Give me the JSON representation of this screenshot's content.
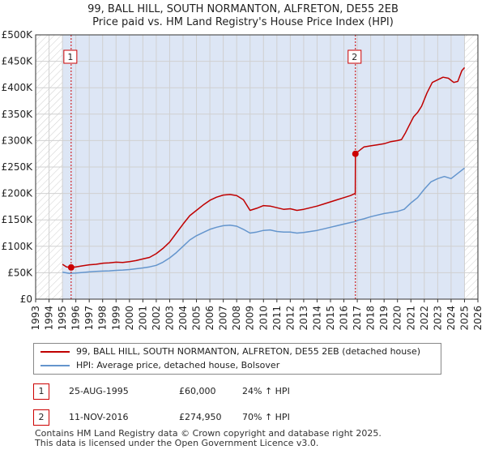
{
  "title": {
    "line1": "99, BALL HILL, SOUTH NORMANTON, ALFRETON, DE55 2EB",
    "line2": "Price paid vs. HM Land Registry's House Price Index (HPI)"
  },
  "legend": {
    "property_label": "99, BALL HILL, SOUTH NORMANTON, ALFRETON, DE55 2EB (detached house)",
    "hpi_label": "HPI: Average price, detached house, Bolsover"
  },
  "sales": [
    {
      "num": "1",
      "date": "25-AUG-1995",
      "price": "£60,000",
      "hpi": "24% ↑ HPI"
    },
    {
      "num": "2",
      "date": "11-NOV-2016",
      "price": "£274,950",
      "hpi": "70% ↑ HPI"
    }
  ],
  "footer": {
    "line1": "Contains HM Land Registry data © Crown copyright and database right 2025.",
    "line2": "This data is licensed under the Open Government Licence v3.0."
  },
  "colors": {
    "property": "#c00000",
    "hpi": "#6495cd",
    "sale_marker": "#cc0000",
    "shade": "#dde6f5",
    "grid": "#d0d0d0"
  },
  "chart_data": {
    "type": "line",
    "xlim": [
      1993,
      2026
    ],
    "ylim": [
      0,
      500000
    ],
    "x_ticks": [
      "1993",
      "1994",
      "1995",
      "1996",
      "1997",
      "1998",
      "1999",
      "2000",
      "2001",
      "2002",
      "2003",
      "2004",
      "2005",
      "2006",
      "2007",
      "2008",
      "2009",
      "2010",
      "2011",
      "2012",
      "2013",
      "2014",
      "2015",
      "2016",
      "2017",
      "2018",
      "2019",
      "2020",
      "2021",
      "2022",
      "2023",
      "2024",
      "2025",
      "2026"
    ],
    "y_ticks": [
      {
        "value": 0,
        "label": "£0"
      },
      {
        "value": 50000,
        "label": "£50K"
      },
      {
        "value": 100000,
        "label": "£100K"
      },
      {
        "value": 150000,
        "label": "£150K"
      },
      {
        "value": 200000,
        "label": "£200K"
      },
      {
        "value": 250000,
        "label": "£250K"
      },
      {
        "value": 300000,
        "label": "£300K"
      },
      {
        "value": 350000,
        "label": "£350K"
      },
      {
        "value": 400000,
        "label": "£400K"
      },
      {
        "value": 450000,
        "label": "£450K"
      },
      {
        "value": 500000,
        "label": "£500K"
      }
    ],
    "hatched_ranges": [
      [
        1993,
        1995.0
      ],
      [
        2025.0,
        2026
      ]
    ],
    "shaded_range": [
      1995.0,
      2025.0
    ],
    "series": [
      {
        "name": "99, BALL HILL, SOUTH NORMANTON, ALFRETON, DE55 2EB (detached house)",
        "points": [
          [
            1995.0,
            66000
          ],
          [
            1995.3,
            61000
          ],
          [
            1995.65,
            60000
          ],
          [
            1996.0,
            61000
          ],
          [
            1996.5,
            63000
          ],
          [
            1997.0,
            65000
          ],
          [
            1997.5,
            66000
          ],
          [
            1998.0,
            68000
          ],
          [
            1998.5,
            68500
          ],
          [
            1999.0,
            70000
          ],
          [
            1999.5,
            69500
          ],
          [
            2000.0,
            71000
          ],
          [
            2000.5,
            73000
          ],
          [
            2001.0,
            76000
          ],
          [
            2001.5,
            79000
          ],
          [
            2002.0,
            86000
          ],
          [
            2002.5,
            96000
          ],
          [
            2003.0,
            108000
          ],
          [
            2003.5,
            125000
          ],
          [
            2004.0,
            142000
          ],
          [
            2004.5,
            158000
          ],
          [
            2005.0,
            168000
          ],
          [
            2005.5,
            178000
          ],
          [
            2006.0,
            187000
          ],
          [
            2006.5,
            193000
          ],
          [
            2007.0,
            197000
          ],
          [
            2007.5,
            198000
          ],
          [
            2008.0,
            196000
          ],
          [
            2008.5,
            188000
          ],
          [
            2009.0,
            168000
          ],
          [
            2009.5,
            172000
          ],
          [
            2010.0,
            177000
          ],
          [
            2010.5,
            176000
          ],
          [
            2011.0,
            173000
          ],
          [
            2011.5,
            170000
          ],
          [
            2012.0,
            171000
          ],
          [
            2012.5,
            168000
          ],
          [
            2013.0,
            170000
          ],
          [
            2013.5,
            173000
          ],
          [
            2014.0,
            176000
          ],
          [
            2014.5,
            180000
          ],
          [
            2015.0,
            184000
          ],
          [
            2015.5,
            188000
          ],
          [
            2016.0,
            192000
          ],
          [
            2016.5,
            196000
          ],
          [
            2016.85,
            200000
          ],
          [
            2016.86,
            274950
          ],
          [
            2017.0,
            278000
          ],
          [
            2017.5,
            288000
          ],
          [
            2018.0,
            290000
          ],
          [
            2018.5,
            292000
          ],
          [
            2019.0,
            294000
          ],
          [
            2019.5,
            298000
          ],
          [
            2020.0,
            300000
          ],
          [
            2020.3,
            302000
          ],
          [
            2020.6,
            315000
          ],
          [
            2020.9,
            330000
          ],
          [
            2021.2,
            345000
          ],
          [
            2021.5,
            353000
          ],
          [
            2021.8,
            365000
          ],
          [
            2022.2,
            390000
          ],
          [
            2022.6,
            410000
          ],
          [
            2023.0,
            415000
          ],
          [
            2023.4,
            420000
          ],
          [
            2023.8,
            418000
          ],
          [
            2024.2,
            410000
          ],
          [
            2024.5,
            412000
          ],
          [
            2024.8,
            432000
          ],
          [
            2025.0,
            438000
          ]
        ]
      },
      {
        "name": "HPI: Average price, detached house, Bolsover",
        "points": [
          [
            1995.0,
            51000
          ],
          [
            1995.5,
            49000
          ],
          [
            1996.0,
            49500
          ],
          [
            1996.5,
            50500
          ],
          [
            1997.0,
            51500
          ],
          [
            1997.5,
            52500
          ],
          [
            1998.0,
            53000
          ],
          [
            1998.5,
            53500
          ],
          [
            1999.0,
            54500
          ],
          [
            1999.5,
            55000
          ],
          [
            2000.0,
            56000
          ],
          [
            2000.5,
            57500
          ],
          [
            2001.0,
            59000
          ],
          [
            2001.5,
            61000
          ],
          [
            2002.0,
            64000
          ],
          [
            2002.5,
            70000
          ],
          [
            2003.0,
            78000
          ],
          [
            2003.5,
            88000
          ],
          [
            2004.0,
            100000
          ],
          [
            2004.5,
            112000
          ],
          [
            2005.0,
            120000
          ],
          [
            2005.5,
            126000
          ],
          [
            2006.0,
            132000
          ],
          [
            2006.5,
            136000
          ],
          [
            2007.0,
            139000
          ],
          [
            2007.5,
            140000
          ],
          [
            2008.0,
            138000
          ],
          [
            2008.5,
            132000
          ],
          [
            2009.0,
            125000
          ],
          [
            2009.5,
            127000
          ],
          [
            2010.0,
            130000
          ],
          [
            2010.5,
            131000
          ],
          [
            2011.0,
            128000
          ],
          [
            2011.5,
            127000
          ],
          [
            2012.0,
            127000
          ],
          [
            2012.5,
            125000
          ],
          [
            2013.0,
            126000
          ],
          [
            2013.5,
            128000
          ],
          [
            2014.0,
            130000
          ],
          [
            2014.5,
            133000
          ],
          [
            2015.0,
            136000
          ],
          [
            2015.5,
            139000
          ],
          [
            2016.0,
            142000
          ],
          [
            2016.5,
            145000
          ],
          [
            2016.86,
            147000
          ],
          [
            2017.0,
            149000
          ],
          [
            2017.5,
            152000
          ],
          [
            2018.0,
            156000
          ],
          [
            2018.5,
            159000
          ],
          [
            2019.0,
            162000
          ],
          [
            2019.5,
            164000
          ],
          [
            2020.0,
            166000
          ],
          [
            2020.5,
            170000
          ],
          [
            2021.0,
            182000
          ],
          [
            2021.5,
            192000
          ],
          [
            2022.0,
            208000
          ],
          [
            2022.5,
            222000
          ],
          [
            2023.0,
            228000
          ],
          [
            2023.5,
            232000
          ],
          [
            2024.0,
            228000
          ],
          [
            2024.5,
            238000
          ],
          [
            2025.0,
            248000
          ]
        ]
      }
    ],
    "sale_points": [
      {
        "label": "1",
        "x": 1995.65,
        "y": 60000
      },
      {
        "label": "2",
        "x": 2016.86,
        "y": 274950
      }
    ]
  }
}
